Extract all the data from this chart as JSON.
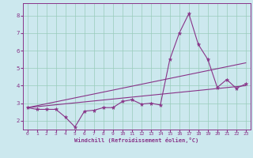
{
  "title": "",
  "xlabel": "Windchill (Refroidissement éolien,°C)",
  "bg_color": "#cce8ee",
  "line_color": "#883388",
  "grid_color": "#99ccbb",
  "xlim": [
    -0.5,
    23.5
  ],
  "ylim": [
    1.5,
    8.7
  ],
  "xticks": [
    0,
    1,
    2,
    3,
    4,
    5,
    6,
    7,
    8,
    9,
    10,
    11,
    12,
    13,
    14,
    15,
    16,
    17,
    18,
    19,
    20,
    21,
    22,
    23
  ],
  "yticks": [
    2,
    3,
    4,
    5,
    6,
    7,
    8
  ],
  "line1_x": [
    0,
    1,
    2,
    3,
    4,
    5,
    6,
    7,
    8,
    9,
    10,
    11,
    12,
    13,
    14,
    15,
    16,
    17,
    18,
    19,
    20,
    21,
    22,
    23
  ],
  "line1_y": [
    2.75,
    2.65,
    2.65,
    2.65,
    2.2,
    1.65,
    2.55,
    2.6,
    2.75,
    2.75,
    3.1,
    3.2,
    2.95,
    3.0,
    2.9,
    5.5,
    7.0,
    8.1,
    6.35,
    5.5,
    3.9,
    4.35,
    3.85,
    4.1
  ],
  "line2_x": [
    0,
    23
  ],
  "line2_y": [
    2.75,
    5.3
  ],
  "line3_x": [
    0,
    23
  ],
  "line3_y": [
    2.75,
    4.0
  ],
  "marker": "*",
  "marker_size": 3.5,
  "linewidth": 0.8
}
